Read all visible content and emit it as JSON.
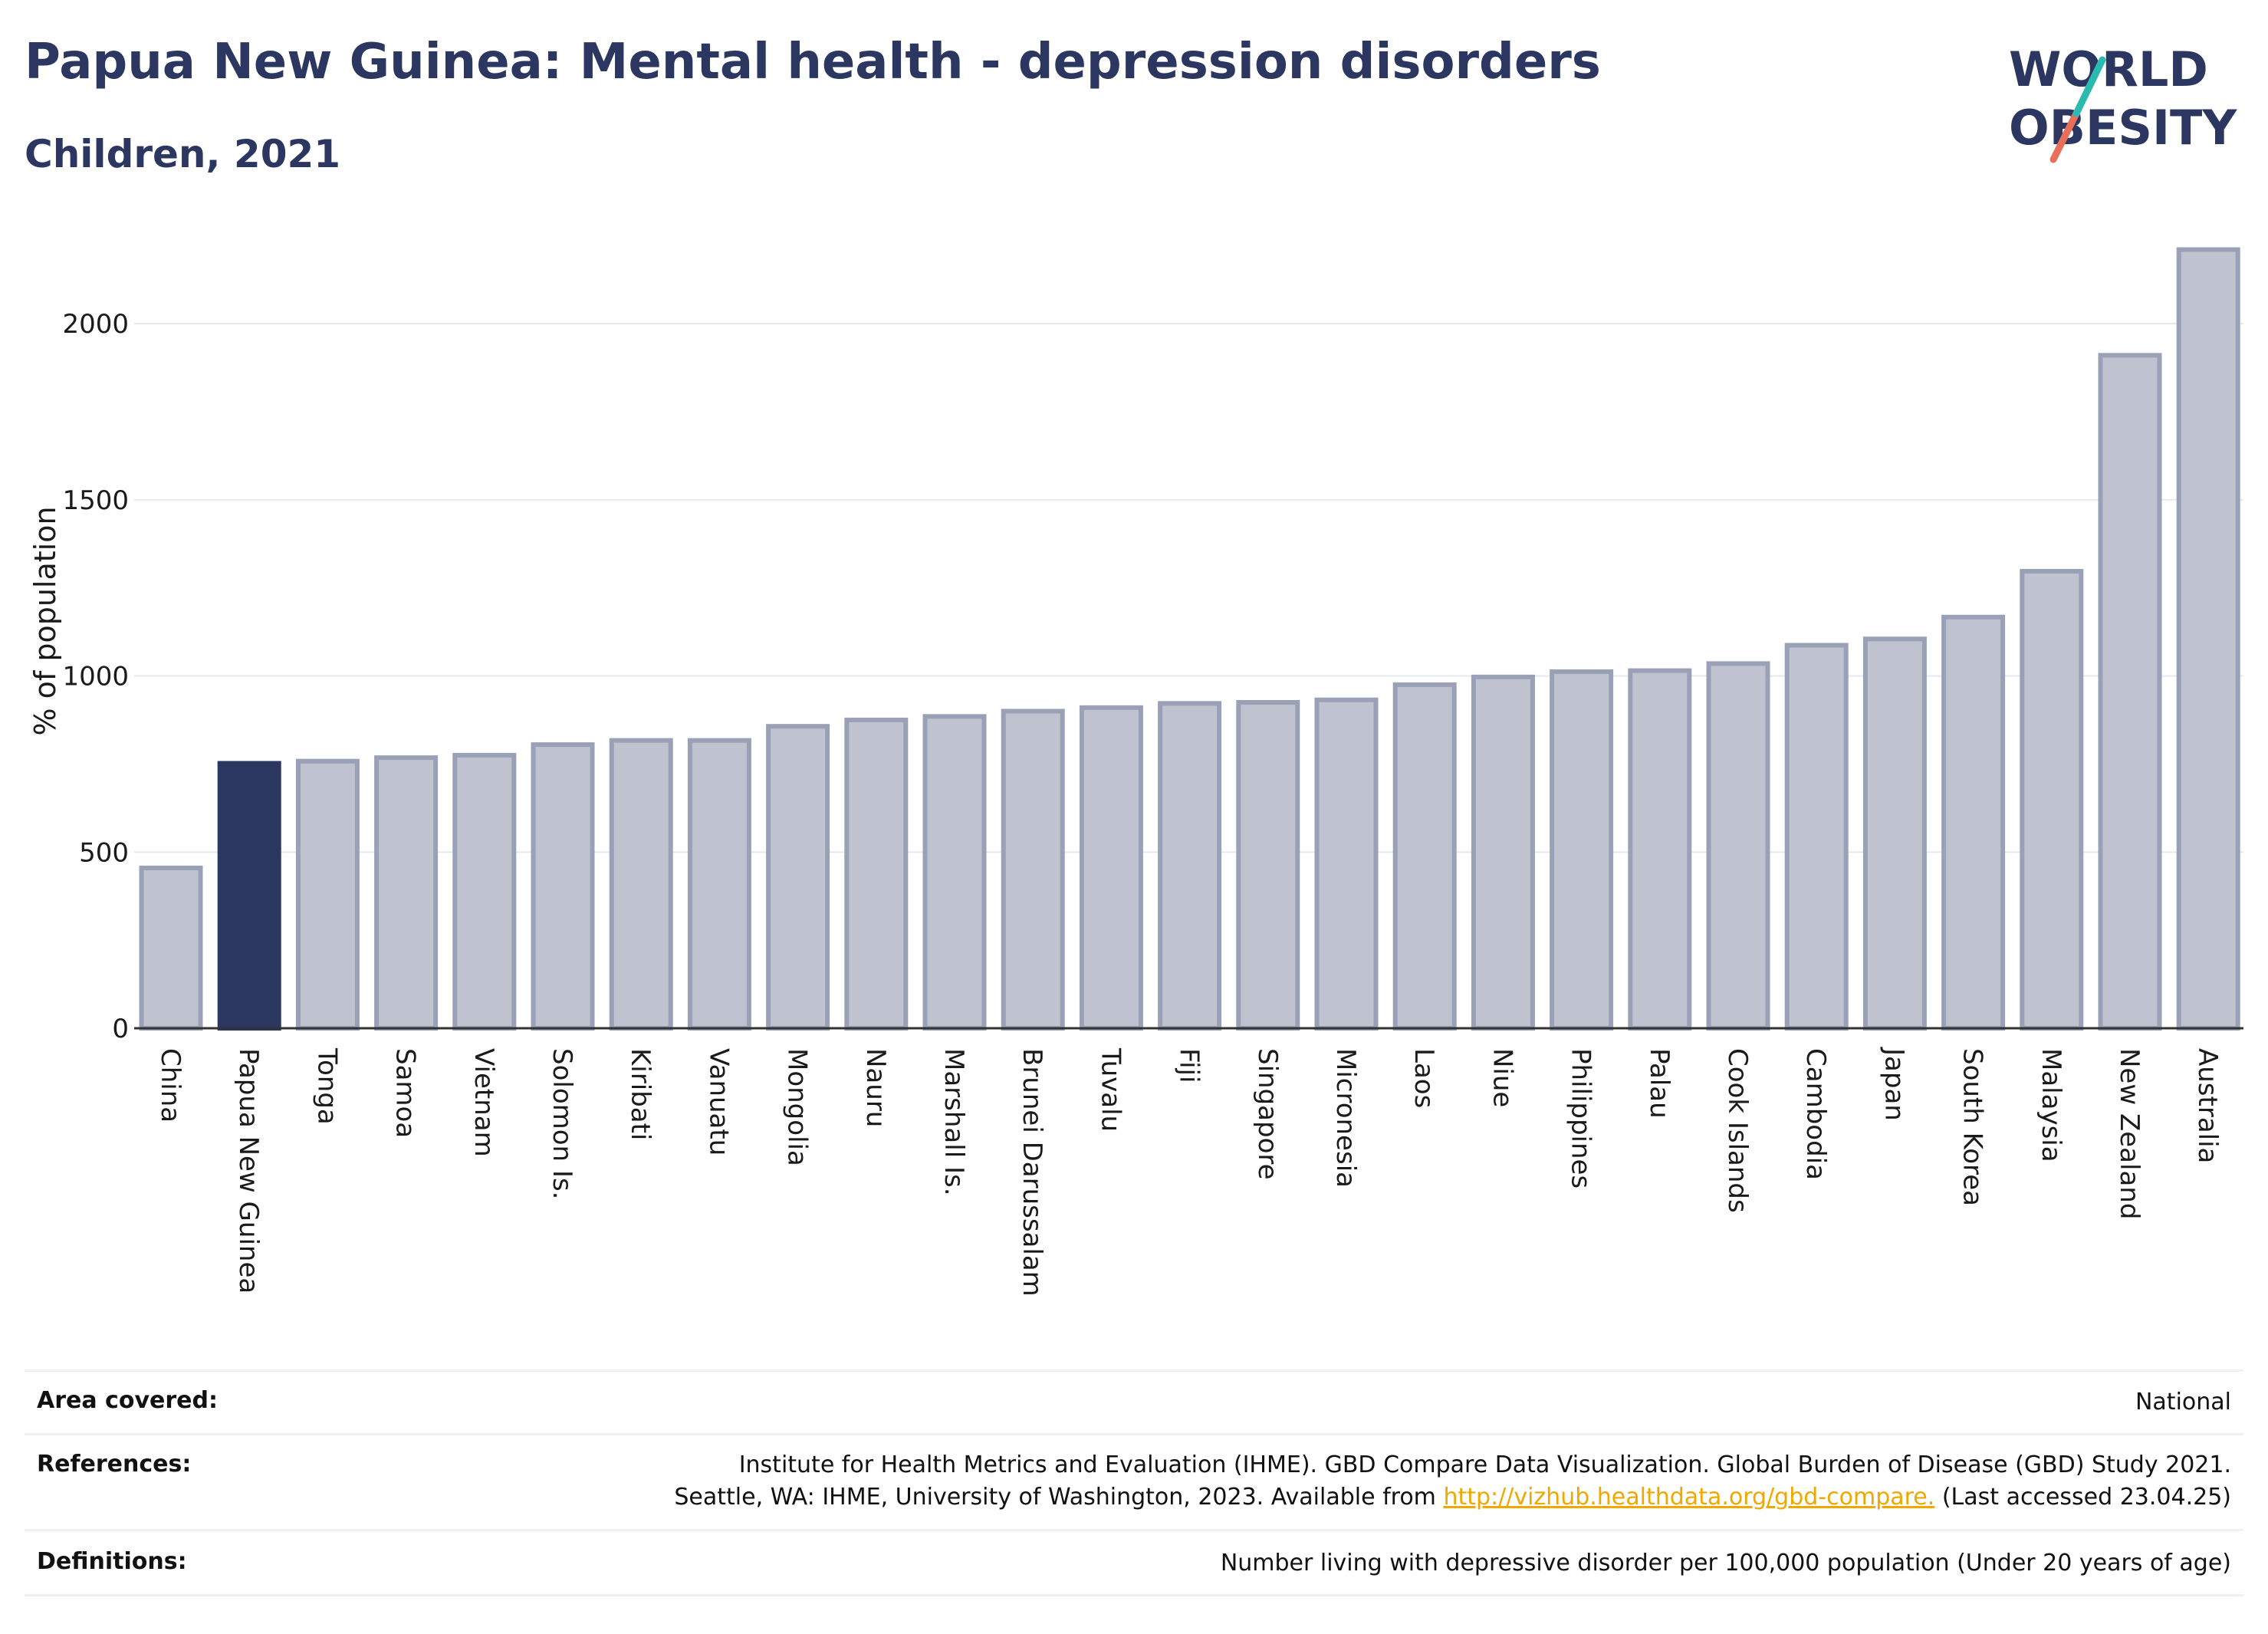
{
  "header": {
    "title": "Papua New Guinea: Mental health - depression disorders",
    "subtitle": "Children, 2021"
  },
  "logo": {
    "line1": "WORLD",
    "line2": "OBESITY"
  },
  "colors": {
    "highlight": "#2b3661",
    "bar_fill": "#bfc3d0",
    "bar_edge": "#9aa0b6",
    "title": "#2b3661",
    "link": "#f0a800"
  },
  "chart_data": {
    "type": "bar",
    "ylabel": "% of population",
    "xlabel": "",
    "ylim": [
      0,
      2220
    ],
    "yticks": [
      0,
      500,
      1000,
      1500,
      2000
    ],
    "grid": true,
    "highlight": "Papua New Guinea",
    "categories": [
      "China",
      "Papua New Guinea",
      "Tonga",
      "Samoa",
      "Vietnam",
      "Solomon Is.",
      "Kiribati",
      "Vanuatu",
      "Mongolia",
      "Nauru",
      "Marshall Is.",
      "Brunei Darussalam",
      "Tuvalu",
      "Fiji",
      "Singapore",
      "Micronesia",
      "Laos",
      "Niue",
      "Philippines",
      "Palau",
      "Cook Islands",
      "Cambodia",
      "Japan",
      "South Korea",
      "Malaysia",
      "New Zealand",
      "Australia"
    ],
    "values": [
      455,
      752,
      758,
      768,
      775,
      805,
      817,
      817,
      857,
      875,
      885,
      900,
      910,
      922,
      925,
      932,
      975,
      997,
      1012,
      1015,
      1035,
      1087,
      1105,
      1167,
      1297,
      1910,
      2210
    ]
  },
  "footer": {
    "area_label": "Area covered:",
    "area_value": "National",
    "references_label": "References:",
    "references_line1": "Institute for Health Metrics and Evaluation (IHME). GBD Compare Data Visualization. Global Burden of Disease (GBD) Study 2021.",
    "references_line2_pre": "Seattle, WA: IHME, University of Washington, 2023. Available from ",
    "references_link": "http://vizhub.healthdata.org/gbd-compare.",
    "references_line2_post": " (Last accessed 23.04.25)",
    "definitions_label": "Definitions:",
    "definitions_value": "Number living with depressive disorder per 100,000 population (Under 20 years of age)"
  }
}
